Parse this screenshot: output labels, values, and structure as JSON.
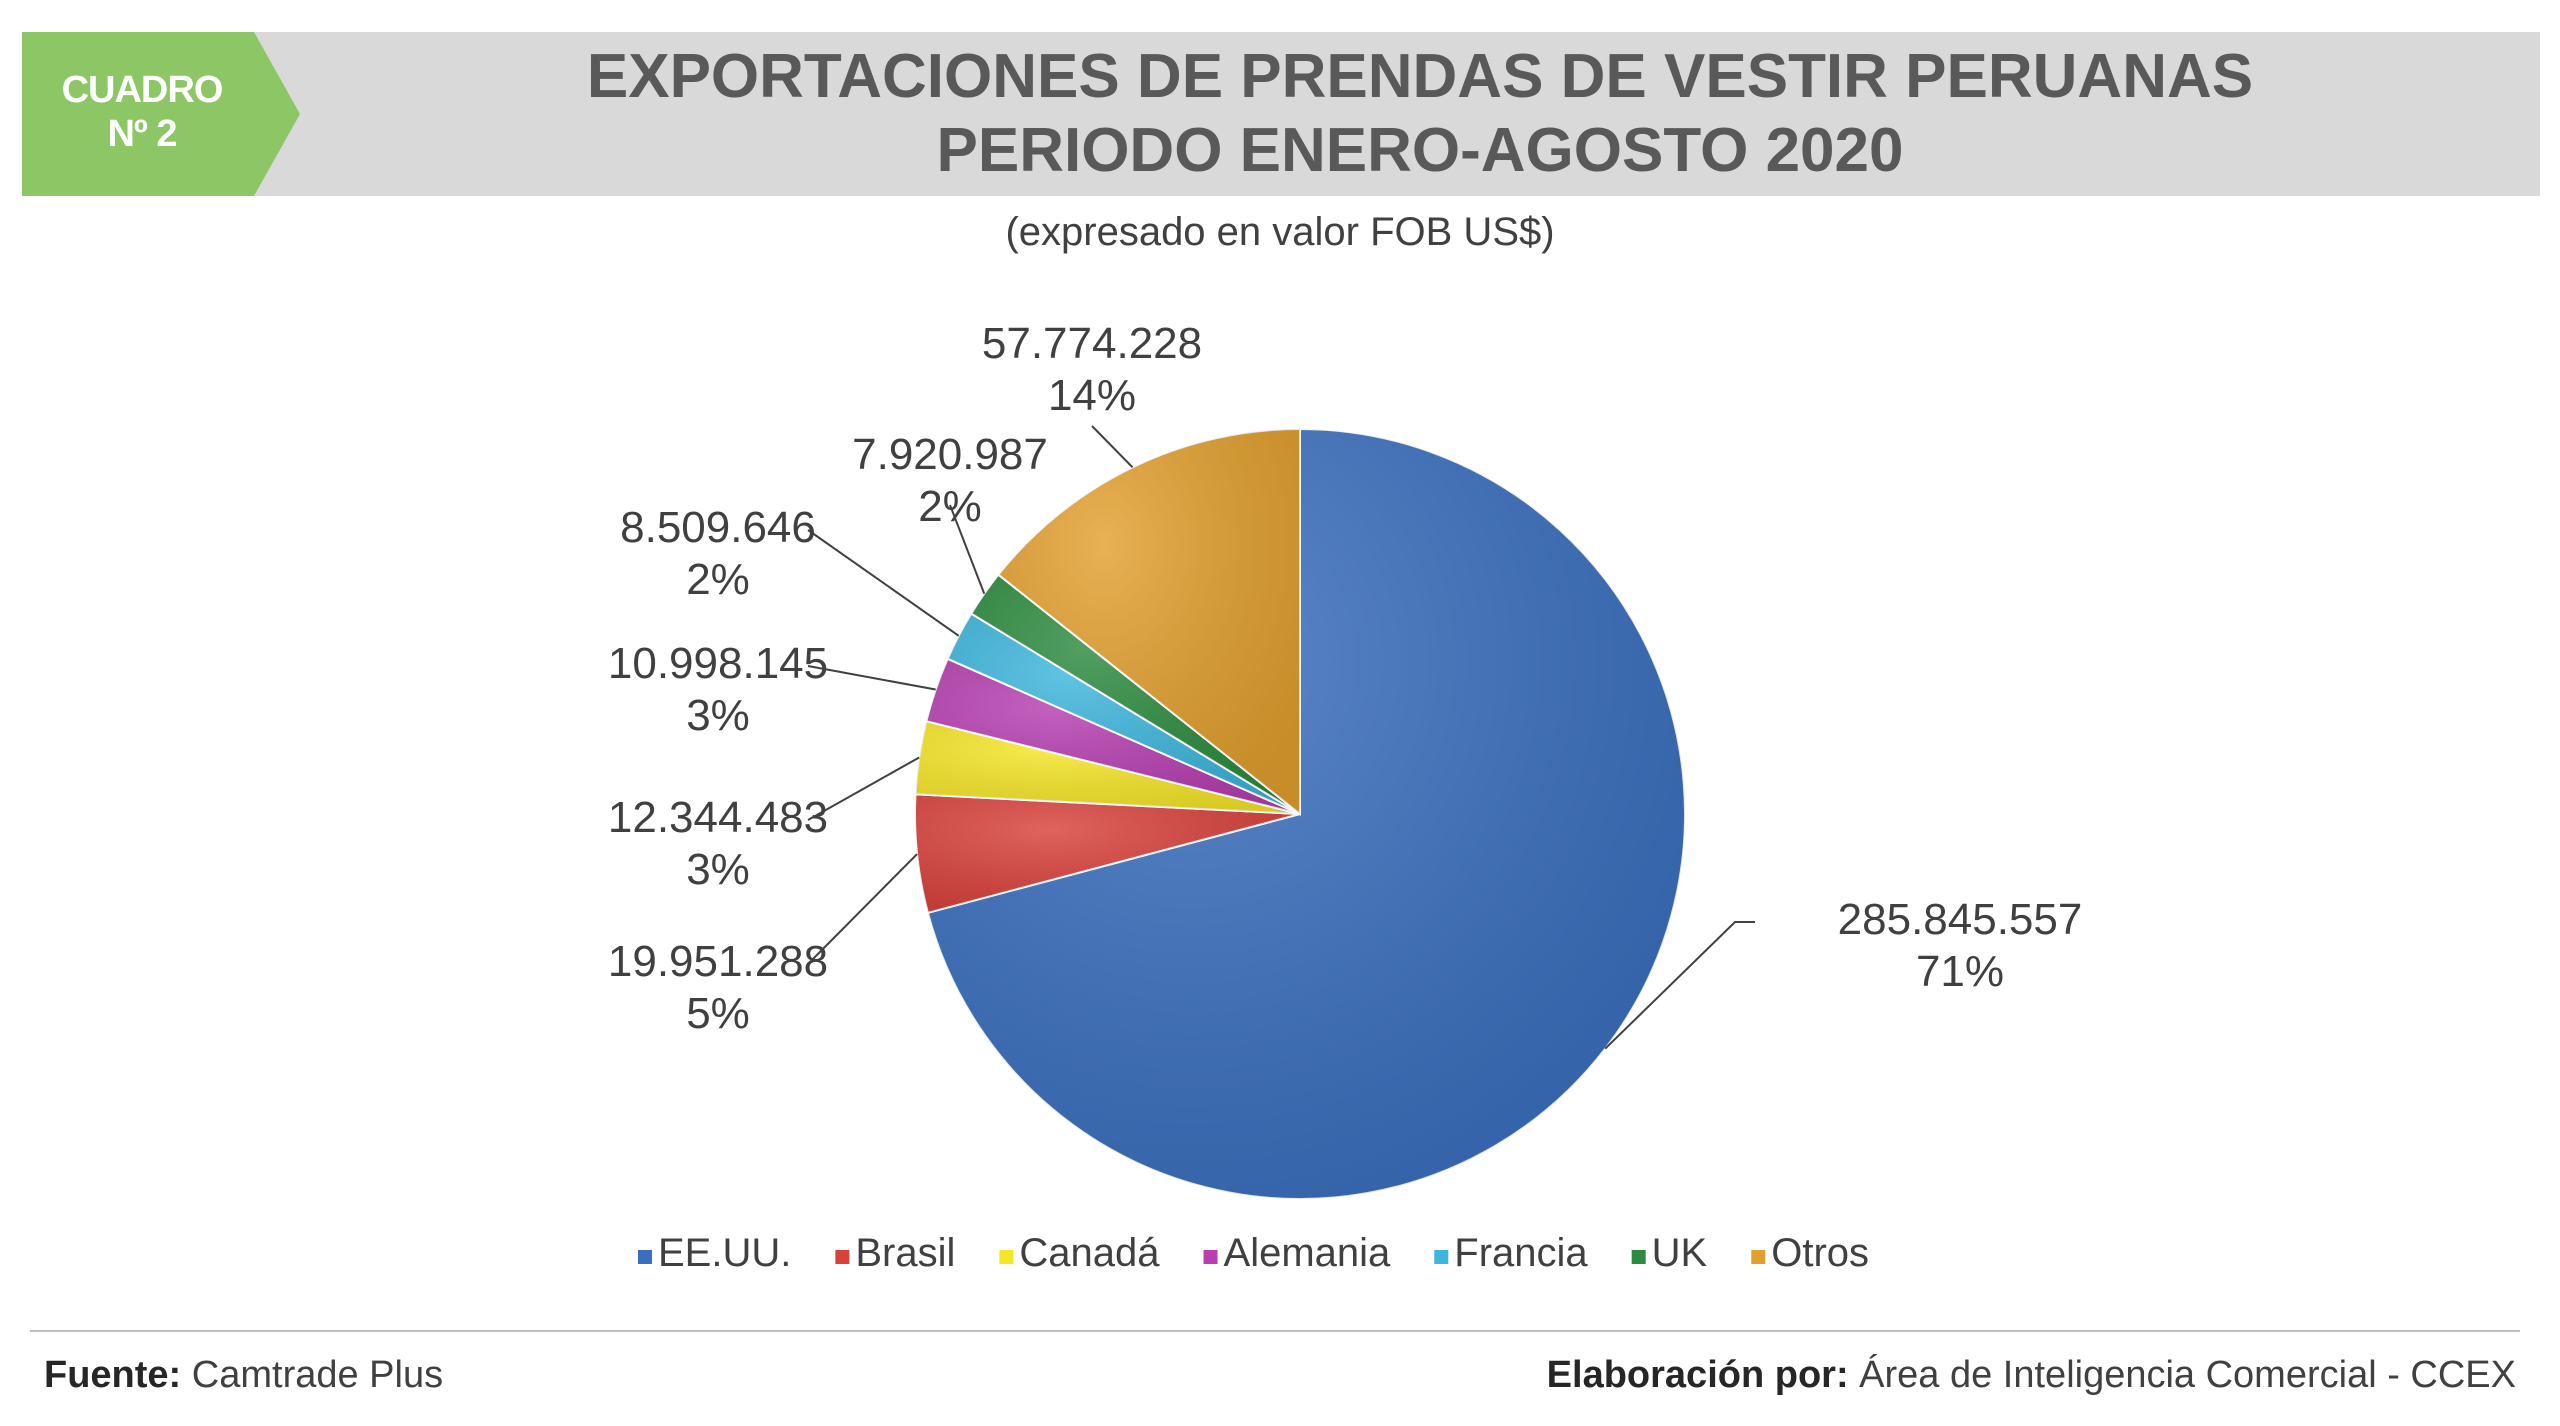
{
  "header": {
    "badge_line1": "CUADRO",
    "badge_line2": "Nº 2",
    "title_line1": "EXPORTACIONES DE PRENDAS DE VESTIR PERUANAS",
    "title_line2": "PERIODO ENERO-AGOSTO 2020",
    "subtitle": "(expresado en valor FOB US$)"
  },
  "colors": {
    "badge_green": "#8dc665",
    "band_gray": "#d9d9d9",
    "title_gray": "#595959"
  },
  "chart_data": {
    "type": "pie",
    "title": "EXPORTACIONES DE PRENDAS DE VESTIR PERUANAS PERIODO ENERO-AGOSTO 2020",
    "subtitle": "(expresado en valor FOB US$)",
    "legend_position": "bottom",
    "slices": [
      {
        "label": "EE.UU.",
        "value": 285845557,
        "value_label": "285.845.557",
        "percent_label": "71%",
        "color": "#3a6fbf"
      },
      {
        "label": "Brasil",
        "value": 19951288,
        "value_label": "19.951.288",
        "percent_label": "5%",
        "color": "#d9413b"
      },
      {
        "label": "Canadá",
        "value": 12344483,
        "value_label": "12.344.483",
        "percent_label": "3%",
        "color": "#f5e627"
      },
      {
        "label": "Alemania",
        "value": 10998145,
        "value_label": "10.998.145",
        "percent_label": "3%",
        "color": "#b73fb1"
      },
      {
        "label": "Francia",
        "value": 8509646,
        "value_label": "8.509.646",
        "percent_label": "2%",
        "color": "#3db6dd"
      },
      {
        "label": "UK",
        "value": 7920987,
        "value_label": "7.920.987",
        "percent_label": "2%",
        "color": "#2c8b3f"
      },
      {
        "label": "Otros",
        "value": 57774228,
        "value_label": "57.774.228",
        "percent_label": "14%",
        "color": "#e3a02e"
      }
    ]
  },
  "footer": {
    "source_label": "Fuente:",
    "source_value": "Camtrade Plus",
    "credit_label": "Elaboración por:",
    "credit_value": "Área de Inteligencia Comercial - CCEX"
  }
}
